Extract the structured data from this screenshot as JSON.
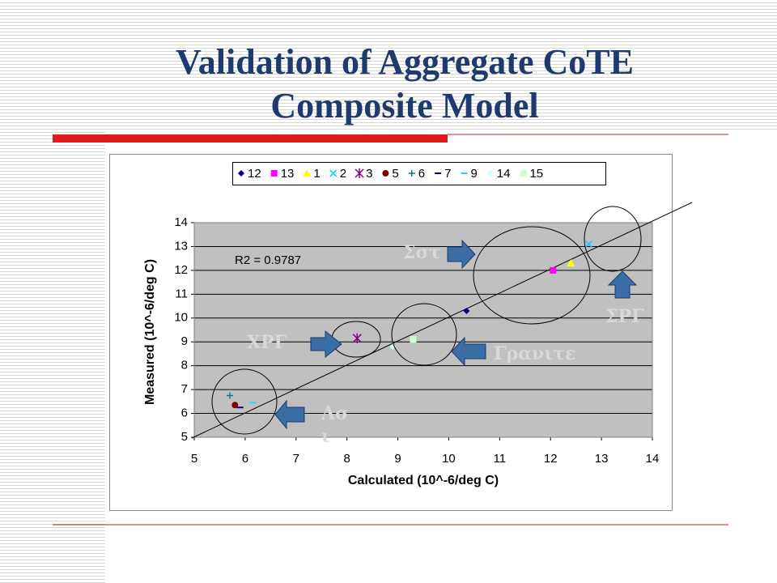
{
  "chart_data": {
    "type": "scatter",
    "title": [
      "Validation of Aggregate CoTE",
      "Composite Model"
    ],
    "xlabel": "Calculated (10^-6/deg C)",
    "ylabel": "Measured (10^-6/deg C)",
    "xlim": [
      5,
      14
    ],
    "ylim": [
      5,
      14
    ],
    "xticks": [
      5,
      6,
      7,
      8,
      9,
      10,
      11,
      12,
      13,
      14
    ],
    "yticks": [
      5,
      6,
      7,
      8,
      9,
      10,
      11,
      12,
      13,
      14
    ],
    "grid": true,
    "legend": "top",
    "series": [
      {
        "name": "12",
        "color": "#000080",
        "marker": "diamond",
        "x": [
          10.35
        ],
        "values": [
          10.3
        ]
      },
      {
        "name": "13",
        "color": "#ff00ff",
        "marker": "square",
        "x": [
          12.05
        ],
        "values": [
          12.0
        ]
      },
      {
        "name": "1",
        "color": "#ffff00",
        "marker": "triangle",
        "x": [
          12.4
        ],
        "values": [
          12.3
        ]
      },
      {
        "name": "2",
        "color": "#00ccff",
        "marker": "x",
        "x": [
          12.75
        ],
        "values": [
          13.1
        ]
      },
      {
        "name": "3",
        "color": "#800080",
        "marker": "star",
        "x": [
          8.2
        ],
        "values": [
          9.15
        ]
      },
      {
        "name": "5",
        "color": "#800000",
        "marker": "circle",
        "x": [
          5.8
        ],
        "values": [
          6.35
        ]
      },
      {
        "name": "6",
        "color": "#008080",
        "marker": "plus",
        "x": [
          5.7
        ],
        "values": [
          6.75
        ]
      },
      {
        "name": "7",
        "color": "#000080",
        "marker": "dash",
        "x": [
          5.9
        ],
        "values": [
          6.25
        ]
      },
      {
        "name": "9",
        "color": "#33ccff",
        "marker": "dash",
        "x": [
          6.15
        ],
        "values": [
          6.45
        ]
      },
      {
        "name": "14",
        "color": "#ccffff",
        "marker": "diamond",
        "x": [
          8.9
        ],
        "values": [
          8.8
        ]
      },
      {
        "name": "15",
        "color": "#ccffcc",
        "marker": "square",
        "x": [
          9.3
        ],
        "values": [
          9.1
        ]
      }
    ],
    "r2_label": "R2 = 0.9787",
    "annotations": [
      "Σστ",
      "ΧΡΓ",
      "Γρανιτε",
      "ΣΡΓ",
      "Λσ",
      "ι"
    ]
  }
}
